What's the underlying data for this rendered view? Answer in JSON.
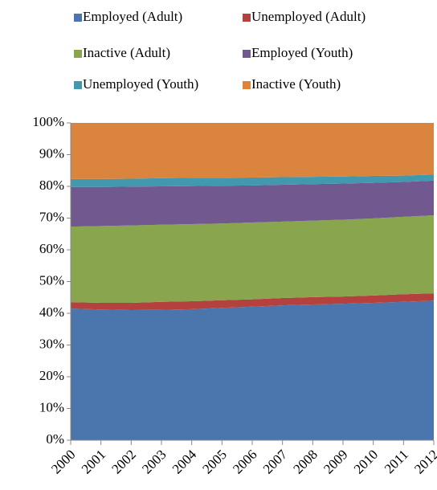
{
  "chart_data": {
    "type": "stacked_area",
    "x": [
      2000,
      2001,
      2002,
      2003,
      2004,
      2005,
      2006,
      2007,
      2008,
      2009,
      2010,
      2011,
      2012
    ],
    "xlim": [
      2000,
      2012
    ],
    "series": [
      {
        "name": "Employed (Adult)",
        "color": "#4a76ad",
        "values": [
          41.5,
          41.2,
          41.0,
          41.1,
          41.3,
          41.7,
          42.1,
          42.5,
          42.8,
          43.0,
          43.3,
          43.6,
          44.0
        ]
      },
      {
        "name": "Unemployed (Adult)",
        "color": "#b5413e",
        "values": [
          2.0,
          2.1,
          2.3,
          2.5,
          2.5,
          2.4,
          2.3,
          2.3,
          2.3,
          2.3,
          2.3,
          2.4,
          2.3
        ]
      },
      {
        "name": "Inactive (Adult)",
        "color": "#89a54e",
        "values": [
          23.8,
          24.2,
          24.4,
          24.3,
          24.3,
          24.2,
          24.2,
          24.1,
          24.1,
          24.2,
          24.3,
          24.4,
          24.6
        ]
      },
      {
        "name": "Employed (Youth)",
        "color": "#71588f",
        "values": [
          12.5,
          12.3,
          12.2,
          12.1,
          12.0,
          11.9,
          11.7,
          11.6,
          11.5,
          11.4,
          11.2,
          11.0,
          10.9
        ]
      },
      {
        "name": "Unemployed (Youth)",
        "color": "#4198af",
        "values": [
          2.5,
          2.5,
          2.5,
          2.6,
          2.6,
          2.5,
          2.5,
          2.4,
          2.3,
          2.2,
          2.2,
          2.0,
          1.9
        ]
      },
      {
        "name": "Inactive (Youth)",
        "color": "#db843d",
        "values": [
          17.7,
          17.7,
          17.6,
          17.4,
          17.3,
          17.3,
          17.2,
          17.1,
          17.0,
          16.9,
          16.7,
          16.6,
          16.3
        ]
      }
    ],
    "ylim": [
      0,
      100
    ],
    "yticks": [
      {
        "value": 0,
        "label": "0%"
      },
      {
        "value": 10,
        "label": "10%"
      },
      {
        "value": 20,
        "label": "20%"
      },
      {
        "value": 30,
        "label": "30%"
      },
      {
        "value": 40,
        "label": "40%"
      },
      {
        "value": 50,
        "label": "50%"
      },
      {
        "value": 60,
        "label": "60%"
      },
      {
        "value": 70,
        "label": "70%"
      },
      {
        "value": 80,
        "label": "80%"
      },
      {
        "value": 90,
        "label": "90%"
      },
      {
        "value": 100,
        "label": "100%"
      }
    ],
    "legend": "top"
  }
}
